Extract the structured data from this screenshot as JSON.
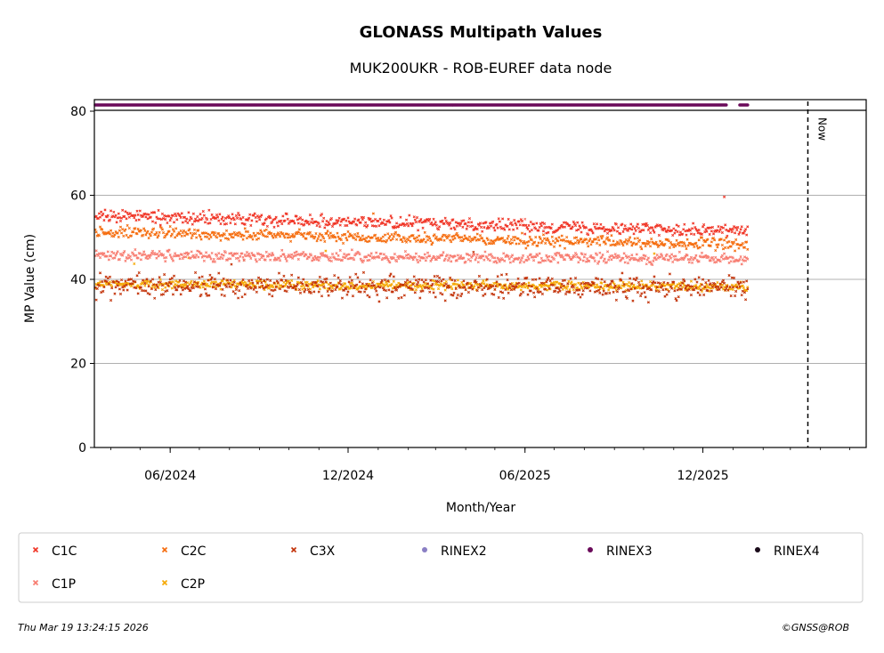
{
  "chart_data": {
    "type": "scatter",
    "title": "GLONASS Multipath Values",
    "subtitle": "MUK200UKR - ROB-EUREF data node",
    "xlabel": "Month/Year",
    "ylabel": "MP Value (cm)",
    "x_range": [
      "2024-03-15",
      "2026-05-18"
    ],
    "ylim": [
      0,
      80
    ],
    "yticks": [
      0,
      20,
      40,
      60,
      80
    ],
    "xticks": [
      {
        "date": "2024-06-01",
        "label": "06/2024"
      },
      {
        "date": "2024-12-01",
        "label": "12/2024"
      },
      {
        "date": "2025-06-01",
        "label": "06/2025"
      },
      {
        "date": "2025-12-01",
        "label": "12/2025"
      }
    ],
    "grid": "horizontal",
    "now_marker": {
      "date": "2026-03-19",
      "label": "Now"
    },
    "data_start": "2024-03-16",
    "data_end": "2026-01-16",
    "series": [
      {
        "name": "C1C",
        "color": "#f03223",
        "marker": "x",
        "mean_start": 55.2,
        "mean_end": 51.5,
        "spread": 1.2
      },
      {
        "name": "C2C",
        "color": "#f56a0a",
        "marker": "x",
        "mean_start": 51.3,
        "mean_end": 48.2,
        "spread": 1.1
      },
      {
        "name": "C3X",
        "color": "#c23006",
        "marker": "x",
        "mean_start": 38.5,
        "mean_end": 38.0,
        "spread": 2.3
      },
      {
        "name": "C1P",
        "color": "#f77a6e",
        "marker": "x",
        "mean_start": 45.8,
        "mean_end": 44.8,
        "spread": 1.0
      },
      {
        "name": "C2P",
        "color": "#f5a800",
        "marker": "x",
        "mean_start": 38.8,
        "mean_end": 38.3,
        "spread": 0.9
      },
      {
        "name": "RINEX2",
        "color": "#8a7fc4",
        "marker": "dot"
      },
      {
        "name": "RINEX3",
        "color": "#6a0a5a",
        "marker": "dot"
      },
      {
        "name": "RINEX4",
        "color": "#1a0a1a",
        "marker": "dot"
      }
    ],
    "legend_position": "bottom",
    "legend_order": [
      "C1C",
      "C2C",
      "C3X",
      "RINEX2",
      "RINEX3",
      "RINEX4",
      "C1P",
      "C2P"
    ]
  },
  "footer": {
    "timestamp": "Thu Mar 19 13:24:15 2026",
    "credit": "©GNSS@ROB"
  }
}
